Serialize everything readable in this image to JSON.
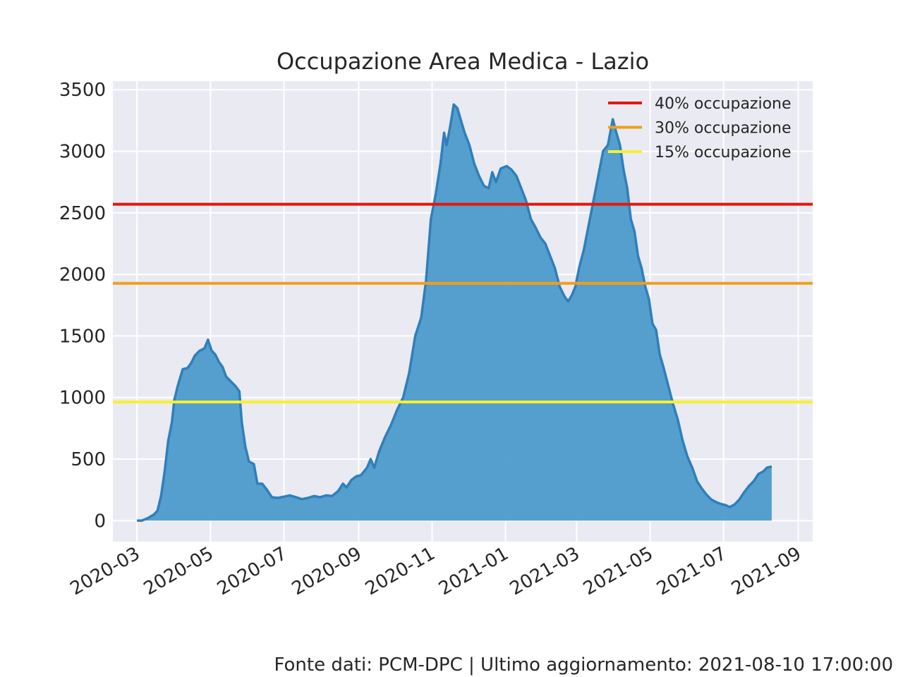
{
  "chart_data": {
    "type": "area",
    "title": "Occupazione Area Medica - Lazio",
    "xlabel": "",
    "ylabel": "",
    "ylim": [
      -170,
      3570
    ],
    "xlim": [
      "2020-02-10",
      "2021-09-13"
    ],
    "grid": true,
    "y_ticks": [
      0,
      500,
      1000,
      1500,
      2000,
      2500,
      3000,
      3500
    ],
    "x_ticks": [
      "2020-03",
      "2020-05",
      "2020-07",
      "2020-09",
      "2020-11",
      "2021-01",
      "2021-03",
      "2021-05",
      "2021-07",
      "2021-09"
    ],
    "series": [
      {
        "color": "#4c9bca",
        "line_color": "#2f7fbc",
        "points": [
          [
            "2020-03-01",
            0
          ],
          [
            "2020-03-05",
            0
          ],
          [
            "2020-03-10",
            20
          ],
          [
            "2020-03-15",
            50
          ],
          [
            "2020-03-18",
            80
          ],
          [
            "2020-03-21",
            200
          ],
          [
            "2020-03-24",
            400
          ],
          [
            "2020-03-27",
            650
          ],
          [
            "2020-03-30",
            800
          ],
          [
            "2020-04-01",
            980
          ],
          [
            "2020-04-04",
            1100
          ],
          [
            "2020-04-08",
            1230
          ],
          [
            "2020-04-12",
            1240
          ],
          [
            "2020-04-15",
            1280
          ],
          [
            "2020-04-18",
            1340
          ],
          [
            "2020-04-22",
            1380
          ],
          [
            "2020-04-26",
            1400
          ],
          [
            "2020-04-29",
            1470
          ],
          [
            "2020-05-02",
            1380
          ],
          [
            "2020-05-05",
            1350
          ],
          [
            "2020-05-08",
            1290
          ],
          [
            "2020-05-11",
            1250
          ],
          [
            "2020-05-14",
            1170
          ],
          [
            "2020-05-18",
            1130
          ],
          [
            "2020-05-22",
            1090
          ],
          [
            "2020-05-25",
            1050
          ],
          [
            "2020-05-27",
            800
          ],
          [
            "2020-05-30",
            600
          ],
          [
            "2020-06-02",
            480
          ],
          [
            "2020-06-06",
            460
          ],
          [
            "2020-06-09",
            300
          ],
          [
            "2020-06-13",
            300
          ],
          [
            "2020-06-17",
            250
          ],
          [
            "2020-06-21",
            190
          ],
          [
            "2020-06-26",
            185
          ],
          [
            "2020-07-01",
            195
          ],
          [
            "2020-07-06",
            205
          ],
          [
            "2020-07-11",
            190
          ],
          [
            "2020-07-16",
            175
          ],
          [
            "2020-07-21",
            185
          ],
          [
            "2020-07-26",
            200
          ],
          [
            "2020-07-31",
            190
          ],
          [
            "2020-08-05",
            205
          ],
          [
            "2020-08-10",
            200
          ],
          [
            "2020-08-15",
            240
          ],
          [
            "2020-08-19",
            300
          ],
          [
            "2020-08-22",
            270
          ],
          [
            "2020-08-26",
            330
          ],
          [
            "2020-08-30",
            360
          ],
          [
            "2020-09-03",
            370
          ],
          [
            "2020-09-08",
            430
          ],
          [
            "2020-09-11",
            500
          ],
          [
            "2020-09-14",
            430
          ],
          [
            "2020-09-18",
            560
          ],
          [
            "2020-09-23",
            680
          ],
          [
            "2020-09-28",
            780
          ],
          [
            "2020-10-03",
            900
          ],
          [
            "2020-10-08",
            1000
          ],
          [
            "2020-10-13",
            1200
          ],
          [
            "2020-10-18",
            1500
          ],
          [
            "2020-10-23",
            1650
          ],
          [
            "2020-10-27",
            1950
          ],
          [
            "2020-10-31",
            2450
          ],
          [
            "2020-11-04",
            2650
          ],
          [
            "2020-11-08",
            2900
          ],
          [
            "2020-11-11",
            3150
          ],
          [
            "2020-11-13",
            3050
          ],
          [
            "2020-11-16",
            3200
          ],
          [
            "2020-11-19",
            3380
          ],
          [
            "2020-11-22",
            3350
          ],
          [
            "2020-11-25",
            3250
          ],
          [
            "2020-11-28",
            3150
          ],
          [
            "2020-12-02",
            3050
          ],
          [
            "2020-12-06",
            2900
          ],
          [
            "2020-12-10",
            2800
          ],
          [
            "2020-12-14",
            2720
          ],
          [
            "2020-12-18",
            2700
          ],
          [
            "2020-12-21",
            2830
          ],
          [
            "2020-12-24",
            2750
          ],
          [
            "2020-12-28",
            2860
          ],
          [
            "2021-01-02",
            2880
          ],
          [
            "2021-01-06",
            2850
          ],
          [
            "2021-01-10",
            2800
          ],
          [
            "2021-01-14",
            2700
          ],
          [
            "2021-01-18",
            2600
          ],
          [
            "2021-01-22",
            2450
          ],
          [
            "2021-01-26",
            2380
          ],
          [
            "2021-01-30",
            2300
          ],
          [
            "2021-02-03",
            2250
          ],
          [
            "2021-02-07",
            2150
          ],
          [
            "2021-02-11",
            2050
          ],
          [
            "2021-02-15",
            1900
          ],
          [
            "2021-02-19",
            1820
          ],
          [
            "2021-02-22",
            1780
          ],
          [
            "2021-02-25",
            1830
          ],
          [
            "2021-02-28",
            1900
          ],
          [
            "2021-03-03",
            2050
          ],
          [
            "2021-03-07",
            2200
          ],
          [
            "2021-03-11",
            2400
          ],
          [
            "2021-03-15",
            2600
          ],
          [
            "2021-03-19",
            2800
          ],
          [
            "2021-03-23",
            3000
          ],
          [
            "2021-03-27",
            3050
          ],
          [
            "2021-03-31",
            3260
          ],
          [
            "2021-04-03",
            3150
          ],
          [
            "2021-04-06",
            3050
          ],
          [
            "2021-04-09",
            2850
          ],
          [
            "2021-04-12",
            2700
          ],
          [
            "2021-04-15",
            2450
          ],
          [
            "2021-04-18",
            2350
          ],
          [
            "2021-04-21",
            2150
          ],
          [
            "2021-04-24",
            2050
          ],
          [
            "2021-04-27",
            1900
          ],
          [
            "2021-04-30",
            1800
          ],
          [
            "2021-05-03",
            1600
          ],
          [
            "2021-05-06",
            1550
          ],
          [
            "2021-05-09",
            1350
          ],
          [
            "2021-05-12",
            1250
          ],
          [
            "2021-05-16",
            1100
          ],
          [
            "2021-05-20",
            950
          ],
          [
            "2021-05-24",
            820
          ],
          [
            "2021-05-28",
            650
          ],
          [
            "2021-06-01",
            520
          ],
          [
            "2021-06-05",
            430
          ],
          [
            "2021-06-09",
            320
          ],
          [
            "2021-06-13",
            260
          ],
          [
            "2021-06-17",
            210
          ],
          [
            "2021-06-21",
            170
          ],
          [
            "2021-06-25",
            150
          ],
          [
            "2021-06-29",
            135
          ],
          [
            "2021-07-03",
            125
          ],
          [
            "2021-07-06",
            110
          ],
          [
            "2021-07-10",
            130
          ],
          [
            "2021-07-14",
            170
          ],
          [
            "2021-07-18",
            230
          ],
          [
            "2021-07-22",
            280
          ],
          [
            "2021-07-26",
            320
          ],
          [
            "2021-07-30",
            380
          ],
          [
            "2021-08-03",
            400
          ],
          [
            "2021-08-06",
            430
          ],
          [
            "2021-08-10",
            440
          ]
        ]
      }
    ],
    "thresholds": [
      {
        "name": "40% occupazione",
        "value": 2570,
        "color": "#e3170a"
      },
      {
        "name": "30% occupazione",
        "value": 1928,
        "color": "#f29e1c"
      },
      {
        "name": "15% occupazione",
        "value": 964,
        "color": "#f7f02f"
      }
    ],
    "legend_position": "top-right",
    "footer": "Fonte dati: PCM-DPC | Ultimo aggiornamento: 2021-08-10 17:00:00"
  }
}
